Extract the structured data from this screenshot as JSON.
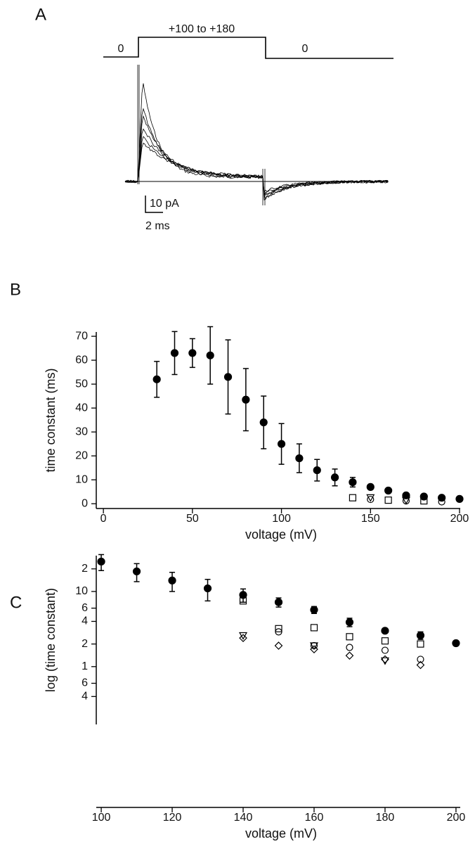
{
  "panel_a": {
    "label": "A",
    "protocol": {
      "before": "0",
      "step": "+100 to +180",
      "after": "0"
    },
    "scale_bar": {
      "current": "10 pA",
      "time": "2 ms"
    }
  },
  "chart_data": [
    {
      "type": "scatter",
      "label": "B",
      "x_label": "voltage (mV)",
      "y_label": "time constant (ms)",
      "y_scale": "linear",
      "x": [
        30,
        40,
        50,
        60,
        70,
        80,
        90,
        100,
        110,
        120,
        130,
        140,
        150,
        160,
        170,
        180,
        190,
        200
      ],
      "series": [
        {
          "marker": "circle-filled",
          "color": "#000000",
          "values": [
            52,
            63,
            63,
            62,
            53,
            43.5,
            34,
            25,
            19,
            14,
            11,
            9,
            7,
            5.5,
            3.5,
            3,
            2.5,
            2
          ],
          "errors": [
            7.5,
            9,
            6,
            12,
            15.5,
            13,
            11,
            8.5,
            6,
            4.5,
            3.5,
            2,
            0.5,
            null,
            null,
            null,
            null,
            null
          ]
        },
        {
          "marker": "square-open",
          "color": "#000000",
          "values": [
            null,
            null,
            null,
            null,
            null,
            null,
            null,
            null,
            null,
            null,
            null,
            2.5,
            null,
            1.5,
            null,
            1.2,
            null,
            null
          ]
        },
        {
          "marker": "circle-open",
          "color": "#000000",
          "values": [
            null,
            null,
            null,
            null,
            null,
            null,
            null,
            null,
            null,
            null,
            null,
            null,
            1.8,
            null,
            1.2,
            null,
            0.8,
            null
          ]
        },
        {
          "marker": "triangle-open",
          "color": "#000000",
          "values": [
            null,
            null,
            null,
            null,
            null,
            null,
            null,
            null,
            null,
            null,
            null,
            null,
            2.6,
            null,
            1.5,
            null,
            null,
            null
          ]
        }
      ],
      "xlim": [
        -4,
        200.4
      ],
      "ylim": [
        -2,
        71.8
      ],
      "xticks": [
        0,
        50,
        100,
        150,
        200
      ],
      "yticks": [
        0,
        10,
        20,
        30,
        40,
        50,
        60,
        70
      ]
    },
    {
      "type": "scatter",
      "label": "C",
      "x_label": "voltage (mV)",
      "y_label": "log (time constant)",
      "y_scale": "log",
      "x": [
        100,
        110,
        120,
        130,
        140,
        150,
        160,
        170,
        180,
        190,
        200
      ],
      "series": [
        {
          "marker": "circle-filled",
          "color": "#000000",
          "values": [
            25,
            18.5,
            14,
            11,
            9,
            7.2,
            5.7,
            3.9,
            3,
            2.6,
            2.05
          ],
          "errors": [
            6,
            5,
            4,
            3.5,
            1.8,
            1,
            0.6,
            0.5,
            null,
            0.3,
            null
          ]
        },
        {
          "marker": "square-open",
          "color": "#000000",
          "values": [
            null,
            null,
            null,
            null,
            7.5,
            3.2,
            3.3,
            2.5,
            2.2,
            2,
            null
          ]
        },
        {
          "marker": "circle-open",
          "color": "#000000",
          "values": [
            null,
            null,
            null,
            null,
            null,
            2.9,
            1.9,
            1.8,
            1.65,
            1.25,
            null
          ]
        },
        {
          "marker": "triangle-open",
          "color": "#000000",
          "values": [
            null,
            null,
            null,
            null,
            2.6,
            null,
            1.9,
            null,
            1.2,
            null,
            null
          ]
        },
        {
          "marker": "diamond-open",
          "color": "#000000",
          "values": [
            null,
            null,
            null,
            null,
            2.4,
            1.9,
            1.7,
            1.4,
            1.25,
            1.05,
            null
          ]
        }
      ],
      "xlim": [
        98.6,
        201.2
      ],
      "ylim": [
        0.17,
        30
      ],
      "xticks": [
        100,
        120,
        140,
        160,
        180,
        200
      ],
      "yticks": [
        {
          "value": 0.4,
          "label": "4"
        },
        {
          "value": 0.6,
          "label": "6"
        },
        1,
        2,
        4,
        6,
        10,
        {
          "value": 20,
          "label": "2"
        }
      ]
    }
  ]
}
